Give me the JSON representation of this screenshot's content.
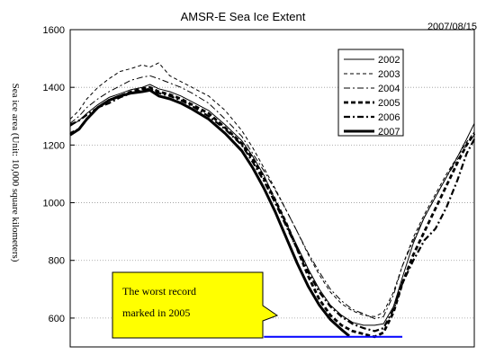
{
  "chart_data": {
    "type": "line",
    "title": "AMSR-E Sea Ice Extent",
    "date": "2007/08/15",
    "xlabel": "",
    "ylabel": "Sea ice area (Unit: 10,000 square kilometers)",
    "xlim": [
      0,
      365
    ],
    "ylim": [
      500,
      1600
    ],
    "yticks": [
      600,
      800,
      1000,
      1200,
      1400,
      1600
    ],
    "grid": true,
    "legend_position": "top-right",
    "series": [
      {
        "name": "2002",
        "style": "thin-solid",
        "points": [
          [
            0,
            1265
          ],
          [
            8,
            1285
          ],
          [
            15,
            1310
          ],
          [
            25,
            1340
          ],
          [
            35,
            1365
          ],
          [
            45,
            1378
          ],
          [
            55,
            1392
          ],
          [
            65,
            1400
          ],
          [
            72,
            1410
          ],
          [
            80,
            1395
          ],
          [
            90,
            1385
          ],
          [
            100,
            1370
          ],
          [
            110,
            1350
          ],
          [
            125,
            1320
          ],
          [
            140,
            1270
          ],
          [
            155,
            1215
          ],
          [
            165,
            1160
          ],
          [
            175,
            1095
          ],
          [
            185,
            1010
          ],
          [
            195,
            930
          ],
          [
            205,
            850
          ],
          [
            215,
            770
          ],
          [
            225,
            700
          ],
          [
            235,
            645
          ],
          [
            245,
            610
          ],
          [
            255,
            585
          ],
          [
            265,
            575
          ],
          [
            275,
            575
          ],
          [
            283,
            580
          ],
          [
            292,
            640
          ],
          [
            300,
            740
          ],
          [
            310,
            860
          ],
          [
            320,
            950
          ],
          [
            330,
            1020
          ],
          [
            340,
            1090
          ],
          [
            350,
            1160
          ],
          [
            358,
            1220
          ],
          [
            365,
            1275
          ]
        ]
      },
      {
        "name": "2003",
        "style": "thin-dashed",
        "points": [
          [
            0,
            1290
          ],
          [
            8,
            1320
          ],
          [
            15,
            1360
          ],
          [
            25,
            1400
          ],
          [
            35,
            1430
          ],
          [
            45,
            1455
          ],
          [
            55,
            1465
          ],
          [
            65,
            1478
          ],
          [
            72,
            1470
          ],
          [
            80,
            1485
          ],
          [
            90,
            1440
          ],
          [
            100,
            1420
          ],
          [
            110,
            1400
          ],
          [
            125,
            1370
          ],
          [
            140,
            1320
          ],
          [
            155,
            1250
          ],
          [
            165,
            1190
          ],
          [
            175,
            1120
          ],
          [
            185,
            1050
          ],
          [
            195,
            975
          ],
          [
            205,
            900
          ],
          [
            215,
            820
          ],
          [
            225,
            750
          ],
          [
            235,
            690
          ],
          [
            245,
            650
          ],
          [
            255,
            625
          ],
          [
            265,
            610
          ],
          [
            275,
            605
          ],
          [
            283,
            620
          ],
          [
            292,
            690
          ],
          [
            300,
            780
          ],
          [
            310,
            880
          ],
          [
            320,
            960
          ],
          [
            330,
            1030
          ],
          [
            340,
            1100
          ],
          [
            350,
            1160
          ],
          [
            358,
            1210
          ],
          [
            365,
            1245
          ]
        ]
      },
      {
        "name": "2004",
        "style": "dash-dot-thin",
        "points": [
          [
            0,
            1275
          ],
          [
            8,
            1300
          ],
          [
            15,
            1330
          ],
          [
            25,
            1360
          ],
          [
            35,
            1385
          ],
          [
            45,
            1405
          ],
          [
            55,
            1425
          ],
          [
            65,
            1435
          ],
          [
            72,
            1440
          ],
          [
            80,
            1430
          ],
          [
            90,
            1415
          ],
          [
            100,
            1400
          ],
          [
            110,
            1380
          ],
          [
            125,
            1345
          ],
          [
            140,
            1290
          ],
          [
            155,
            1230
          ],
          [
            165,
            1170
          ],
          [
            175,
            1110
          ],
          [
            185,
            1045
          ],
          [
            195,
            975
          ],
          [
            205,
            900
          ],
          [
            215,
            825
          ],
          [
            225,
            760
          ],
          [
            235,
            700
          ],
          [
            245,
            660
          ],
          [
            255,
            630
          ],
          [
            265,
            615
          ],
          [
            275,
            598
          ],
          [
            283,
            605
          ],
          [
            292,
            680
          ],
          [
            300,
            780
          ],
          [
            310,
            870
          ],
          [
            320,
            950
          ],
          [
            330,
            1020
          ],
          [
            340,
            1090
          ],
          [
            350,
            1150
          ],
          [
            358,
            1200
          ],
          [
            365,
            1235
          ]
        ]
      },
      {
        "name": "2005",
        "style": "thick-dashed",
        "points": [
          [
            0,
            1240
          ],
          [
            8,
            1255
          ],
          [
            15,
            1290
          ],
          [
            25,
            1330
          ],
          [
            35,
            1355
          ],
          [
            45,
            1370
          ],
          [
            55,
            1385
          ],
          [
            65,
            1395
          ],
          [
            72,
            1400
          ],
          [
            80,
            1385
          ],
          [
            90,
            1375
          ],
          [
            100,
            1360
          ],
          [
            110,
            1340
          ],
          [
            125,
            1310
          ],
          [
            140,
            1260
          ],
          [
            155,
            1205
          ],
          [
            165,
            1150
          ],
          [
            175,
            1085
          ],
          [
            185,
            1010
          ],
          [
            195,
            930
          ],
          [
            205,
            840
          ],
          [
            215,
            745
          ],
          [
            225,
            665
          ],
          [
            235,
            610
          ],
          [
            245,
            575
          ],
          [
            255,
            555
          ],
          [
            265,
            545
          ],
          [
            275,
            535
          ],
          [
            283,
            550
          ],
          [
            292,
            620
          ],
          [
            300,
            720
          ],
          [
            310,
            820
          ],
          [
            320,
            900
          ],
          [
            330,
            980
          ],
          [
            340,
            1060
          ],
          [
            350,
            1140
          ],
          [
            358,
            1200
          ],
          [
            365,
            1240
          ]
        ]
      },
      {
        "name": "2006",
        "style": "thick-dash-dot",
        "points": [
          [
            0,
            1270
          ],
          [
            8,
            1285
          ],
          [
            15,
            1305
          ],
          [
            25,
            1330
          ],
          [
            35,
            1345
          ],
          [
            45,
            1365
          ],
          [
            55,
            1380
          ],
          [
            65,
            1390
          ],
          [
            72,
            1395
          ],
          [
            80,
            1380
          ],
          [
            90,
            1370
          ],
          [
            100,
            1355
          ],
          [
            110,
            1335
          ],
          [
            125,
            1300
          ],
          [
            140,
            1255
          ],
          [
            155,
            1200
          ],
          [
            165,
            1140
          ],
          [
            175,
            1075
          ],
          [
            185,
            1000
          ],
          [
            195,
            920
          ],
          [
            205,
            840
          ],
          [
            215,
            760
          ],
          [
            225,
            690
          ],
          [
            235,
            640
          ],
          [
            245,
            605
          ],
          [
            255,
            580
          ],
          [
            265,
            565
          ],
          [
            275,
            555
          ],
          [
            283,
            565
          ],
          [
            292,
            630
          ],
          [
            300,
            720
          ],
          [
            310,
            800
          ],
          [
            320,
            870
          ],
          [
            330,
            910
          ],
          [
            340,
            985
          ],
          [
            350,
            1080
          ],
          [
            358,
            1170
          ],
          [
            365,
            1220
          ]
        ]
      },
      {
        "name": "2007",
        "style": "thick-solid",
        "points": [
          [
            0,
            1235
          ],
          [
            8,
            1255
          ],
          [
            15,
            1290
          ],
          [
            25,
            1330
          ],
          [
            35,
            1355
          ],
          [
            45,
            1370
          ],
          [
            55,
            1380
          ],
          [
            65,
            1385
          ],
          [
            72,
            1390
          ],
          [
            80,
            1370
          ],
          [
            90,
            1360
          ],
          [
            100,
            1345
          ],
          [
            110,
            1325
          ],
          [
            125,
            1290
          ],
          [
            140,
            1240
          ],
          [
            155,
            1180
          ],
          [
            165,
            1120
          ],
          [
            175,
            1050
          ],
          [
            185,
            970
          ],
          [
            195,
            880
          ],
          [
            205,
            790
          ],
          [
            215,
            710
          ],
          [
            225,
            645
          ],
          [
            235,
            595
          ],
          [
            245,
            560
          ],
          [
            252,
            538
          ]
        ]
      }
    ],
    "reference_line": {
      "value": 535,
      "x_start": 175,
      "x_end": 300,
      "color": "#0000ff",
      "label": "The worst record marked in 2005"
    }
  },
  "callout": {
    "lines": [
      "The worst record",
      "marked in 2005"
    ],
    "fill": "#ffff00"
  }
}
